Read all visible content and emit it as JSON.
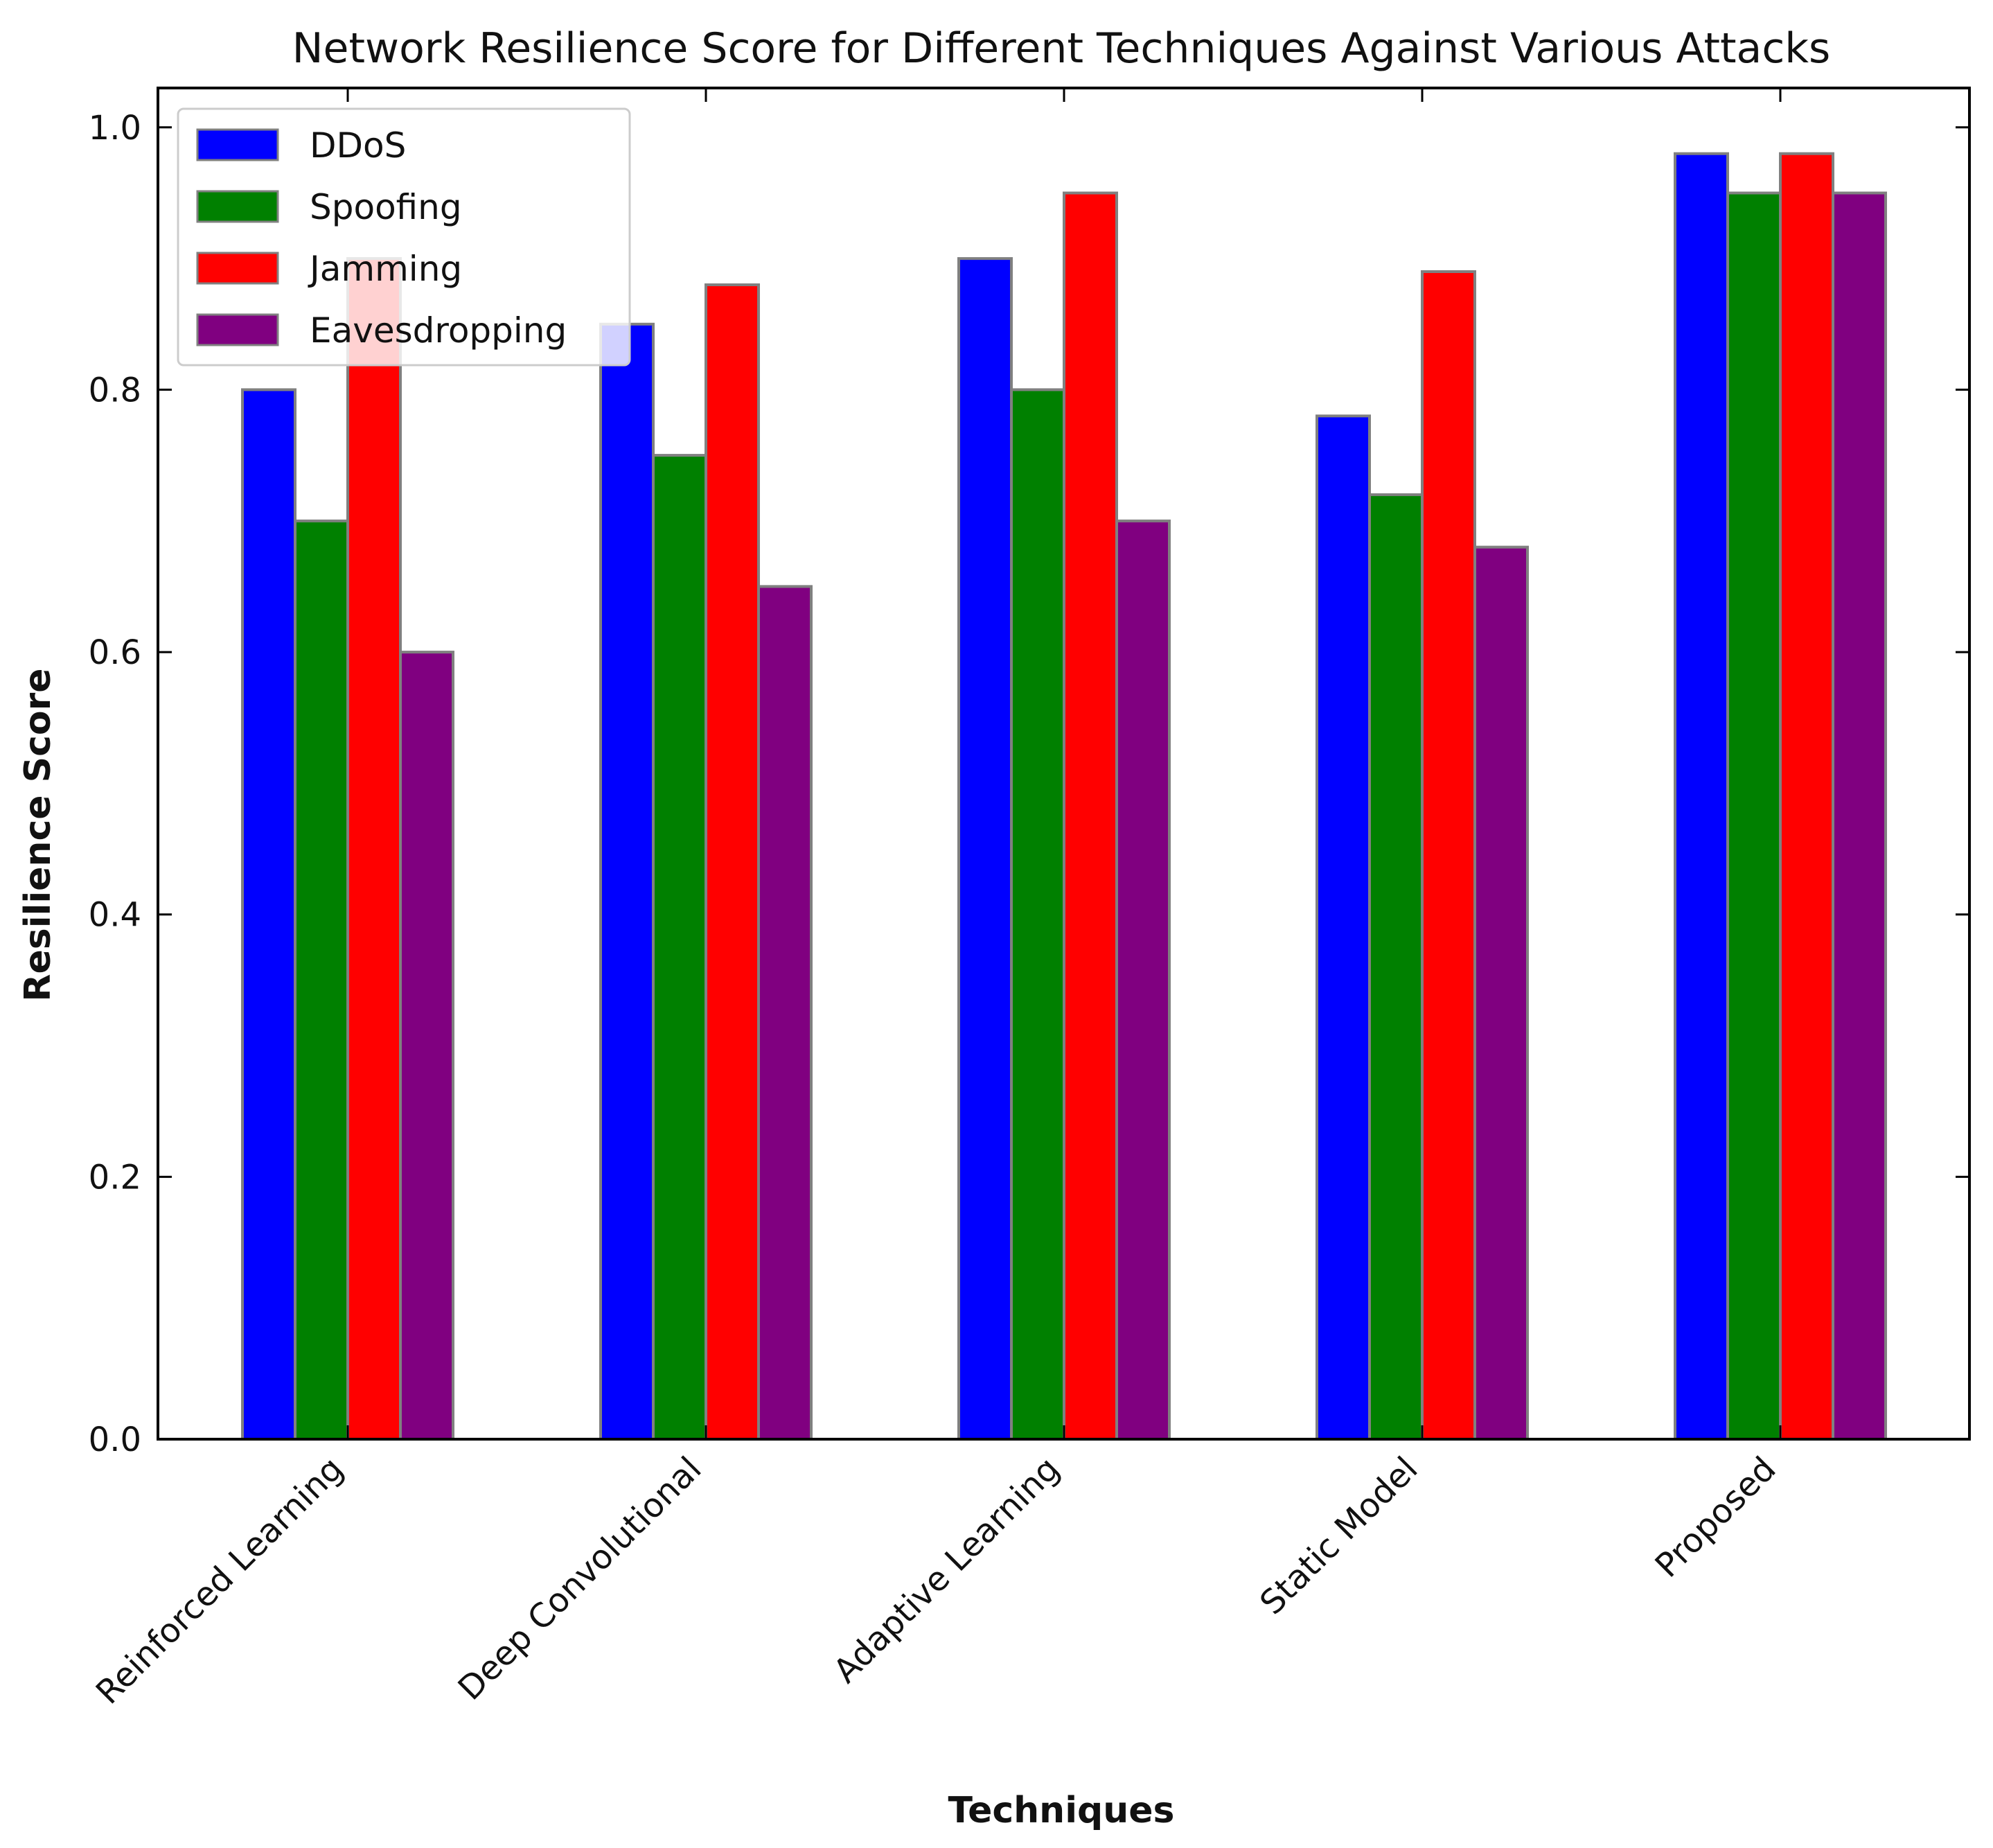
{
  "chart_data": {
    "type": "bar",
    "title": "Network Resilience Score for Different Techniques Against Various Attacks",
    "xlabel": "Techniques",
    "ylabel": "Resilience Score",
    "categories": [
      "Reinforced Learning",
      "Deep Convolutional",
      "Adaptive Learning",
      "Static Model",
      "Proposed"
    ],
    "series": [
      {
        "name": "DDoS",
        "color": "#0000ff",
        "values": [
          0.8,
          0.85,
          0.9,
          0.78,
          0.98
        ]
      },
      {
        "name": "Spoofing",
        "color": "#008000",
        "values": [
          0.7,
          0.75,
          0.8,
          0.72,
          0.95
        ]
      },
      {
        "name": "Jamming",
        "color": "#ff0000",
        "values": [
          0.9,
          0.88,
          0.95,
          0.89,
          0.98
        ]
      },
      {
        "name": "Eavesdropping",
        "color": "#800080",
        "values": [
          0.6,
          0.65,
          0.7,
          0.68,
          0.95
        ]
      }
    ],
    "ylim": [
      0,
      1.03
    ],
    "yticks": [
      "0.0",
      "0.2",
      "0.4",
      "0.6",
      "0.8",
      "1.0"
    ],
    "legend": "top-left",
    "grid": false,
    "bar_edge_color": "#808080"
  }
}
